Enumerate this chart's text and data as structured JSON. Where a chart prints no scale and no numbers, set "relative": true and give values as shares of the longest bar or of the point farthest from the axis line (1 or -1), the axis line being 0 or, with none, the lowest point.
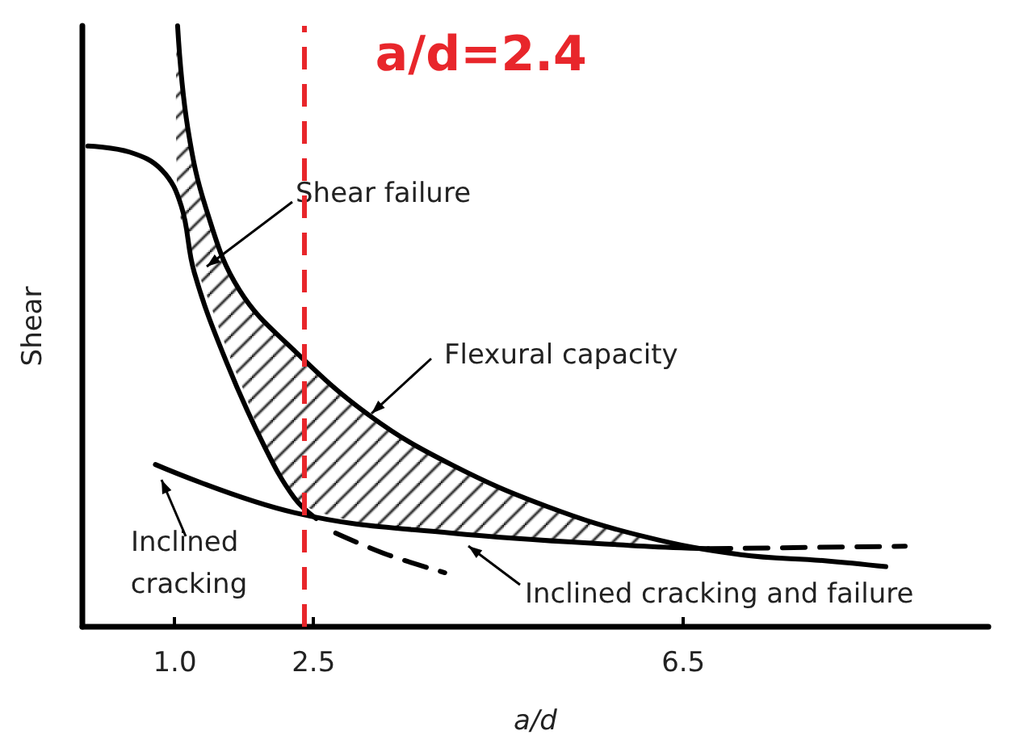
{
  "chart_data": {
    "type": "line",
    "relative": true,
    "xlabel": "a/d",
    "ylabel": "Shear",
    "xlim": [
      0,
      9.8
    ],
    "xticks": [
      {
        "value": 1,
        "label": "1.0"
      },
      2.5,
      6.5
    ],
    "tick_labels": "x",
    "grid": false,
    "marker": "none",
    "series": [
      {
        "color": "#000000",
        "x": [
          1.03,
          1.14,
          1.35,
          1.7,
          2.29,
          3.12,
          3.99,
          5.03,
          6.08,
          7.12,
          8.03,
          8.69
        ],
        "values": [
          1,
          0.83,
          0.69,
          0.56,
          0.46,
          0.35,
          0.27,
          0.2,
          0.15,
          0.12,
          0.11,
          0.1
        ],
        "lower": [
          0.71,
          0.64,
          0.55,
          0.41,
          0.215,
          0.17,
          0.156,
          0.145,
          0.134,
          null,
          null,
          null
        ],
        "upper": [
          1,
          0.83,
          0.69,
          0.56,
          0.46,
          0.35,
          0.27,
          0.2,
          0.15,
          null,
          null,
          null
        ]
      },
      {
        "color": "#000000",
        "x": [
          0.06,
          0.51,
          0.86,
          1.07,
          1.21,
          1.56,
          1.97,
          2.29,
          2.53
        ],
        "values": [
          0.8,
          0.79,
          0.76,
          0.7,
          0.59,
          0.44,
          0.3,
          0.215,
          0.18
        ]
      },
      {
        "color": "#000000",
        "x": [
          0.79,
          2.29,
          3.99,
          6.08,
          6.77
        ],
        "values": [
          0.27,
          0.19,
          0.156,
          0.134,
          0.13
        ]
      },
      {
        "color": "#000000",
        "line_style": "dashed",
        "x": [
          6.77,
          8.9
        ],
        "values": [
          0.13,
          0.134
        ]
      },
      {
        "color": "#000000",
        "line_style": "dashed",
        "x": [
          2.74,
          3.3,
          3.92
        ],
        "values": [
          0.156,
          0.12,
          0.09
        ]
      }
    ],
    "ref_lines": [
      {
        "axis": "x",
        "value": 2.4,
        "label": "a/d=2.4",
        "color": "#e8262b",
        "line_style": "dashed"
      }
    ],
    "annotations": [
      "Shear failure",
      "Flexural capacity",
      "Inclined cracking",
      "Inclined cracking and failure"
    ]
  }
}
